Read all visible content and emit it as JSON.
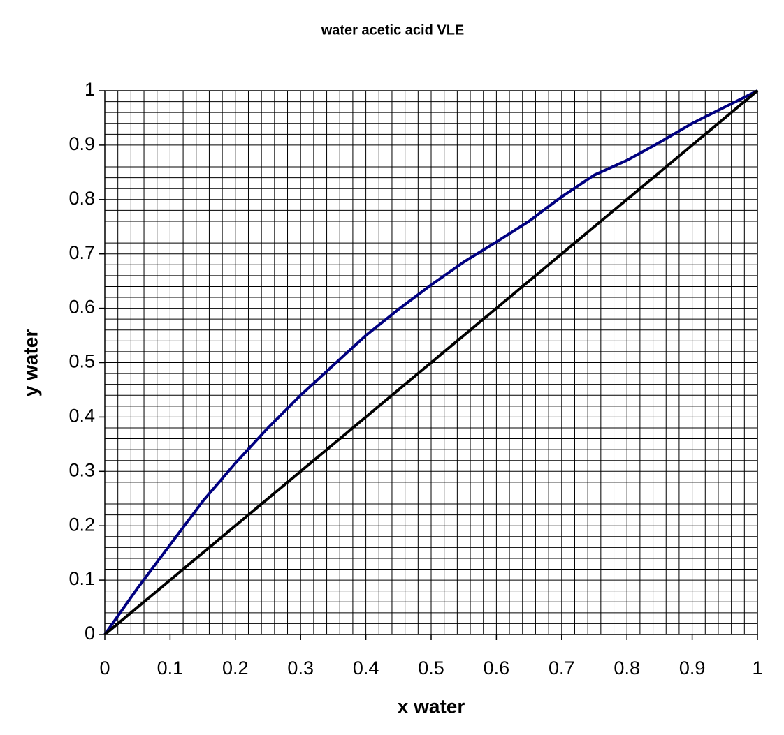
{
  "chart_data": {
    "type": "line",
    "title": "water acetic acid VLE",
    "xlabel": "x water",
    "ylabel": "y water",
    "x": [
      0,
      0.05,
      0.1,
      0.15,
      0.2,
      0.25,
      0.3,
      0.35,
      0.4,
      0.45,
      0.5,
      0.55,
      0.6,
      0.65,
      0.7,
      0.75,
      0.8,
      0.85,
      0.9,
      0.95,
      1
    ],
    "series": [
      {
        "color": "#000080",
        "values": [
          0,
          0.085,
          0.165,
          0.245,
          0.315,
          0.38,
          0.44,
          0.495,
          0.55,
          0.598,
          0.643,
          0.685,
          0.722,
          0.76,
          0.805,
          0.845,
          0.872,
          0.905,
          0.94,
          0.97,
          1
        ]
      },
      {
        "color": "#000000",
        "values": [
          0,
          0.05,
          0.1,
          0.15,
          0.2,
          0.25,
          0.3,
          0.35,
          0.4,
          0.45,
          0.5,
          0.55,
          0.6,
          0.65,
          0.7,
          0.75,
          0.8,
          0.85,
          0.9,
          0.95,
          1
        ]
      }
    ],
    "xlim": [
      0,
      1
    ],
    "ylim": [
      0,
      1
    ],
    "xticks": [
      0,
      0.1,
      0.2,
      0.3,
      0.4,
      0.5,
      0.6,
      0.7,
      0.8,
      0.9,
      1
    ],
    "yticks": [
      0,
      0.1,
      0.2,
      0.3,
      0.4,
      0.5,
      0.6,
      0.7,
      0.8,
      0.9,
      1
    ],
    "grid": true,
    "minor_grid": 0.02
  }
}
